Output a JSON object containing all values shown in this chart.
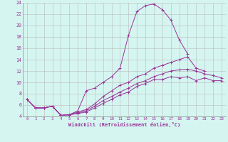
{
  "xlabel": "Windchill (Refroidissement éolien,°C)",
  "bg_color": "#d5f5f0",
  "line_color": "#993399",
  "grid_color": "#bbbbbb",
  "xlim": [
    -0.5,
    23.5
  ],
  "ylim": [
    4,
    24
  ],
  "yticks": [
    4,
    6,
    8,
    10,
    12,
    14,
    16,
    18,
    20,
    22,
    24
  ],
  "xticks": [
    0,
    1,
    2,
    3,
    4,
    5,
    6,
    7,
    8,
    9,
    10,
    11,
    12,
    13,
    14,
    15,
    16,
    17,
    18,
    19,
    20,
    21,
    22,
    23
  ],
  "curves": [
    {
      "x": [
        0,
        1,
        2,
        3,
        4,
        5,
        6,
        7,
        8,
        9,
        10,
        11,
        12,
        13,
        14,
        15,
        16,
        17,
        18,
        19
      ],
      "y": [
        7.0,
        5.5,
        5.5,
        5.8,
        4.2,
        4.3,
        5.0,
        8.5,
        9.0,
        10.0,
        11.0,
        12.5,
        18.3,
        22.5,
        23.5,
        23.8,
        22.8,
        21.0,
        17.5,
        15.0
      ]
    },
    {
      "x": [
        0,
        1,
        2,
        3,
        4,
        5,
        6,
        7,
        8,
        9,
        10,
        11,
        12,
        13,
        14,
        15,
        16,
        17,
        18,
        19,
        20,
        21
      ],
      "y": [
        7.0,
        5.5,
        5.5,
        5.8,
        4.2,
        4.3,
        4.8,
        5.2,
        6.2,
        7.5,
        8.5,
        9.5,
        10.0,
        11.0,
        11.5,
        12.5,
        13.0,
        13.5,
        14.0,
        14.5,
        12.5,
        12.0
      ]
    },
    {
      "x": [
        0,
        1,
        2,
        3,
        4,
        5,
        6,
        7,
        8,
        9,
        10,
        11,
        12,
        13,
        14,
        15,
        16,
        17,
        18,
        19,
        20,
        21,
        22,
        23
      ],
      "y": [
        7.0,
        5.5,
        5.5,
        5.8,
        4.2,
        4.3,
        4.6,
        5.0,
        5.8,
        6.8,
        7.5,
        8.3,
        9.0,
        9.8,
        10.3,
        11.0,
        11.5,
        12.0,
        12.2,
        12.3,
        12.0,
        11.5,
        11.2,
        10.8
      ]
    },
    {
      "x": [
        0,
        1,
        2,
        3,
        4,
        5,
        6,
        7,
        8,
        9,
        10,
        11,
        12,
        13,
        14,
        15,
        16,
        17,
        18,
        19,
        20,
        21,
        22,
        23
      ],
      "y": [
        7.0,
        5.5,
        5.5,
        5.8,
        4.2,
        4.3,
        4.5,
        4.8,
        5.5,
        6.3,
        7.0,
        7.8,
        8.3,
        9.3,
        9.8,
        10.5,
        10.5,
        11.0,
        10.8,
        11.0,
        10.3,
        10.8,
        10.3,
        10.3
      ]
    }
  ]
}
